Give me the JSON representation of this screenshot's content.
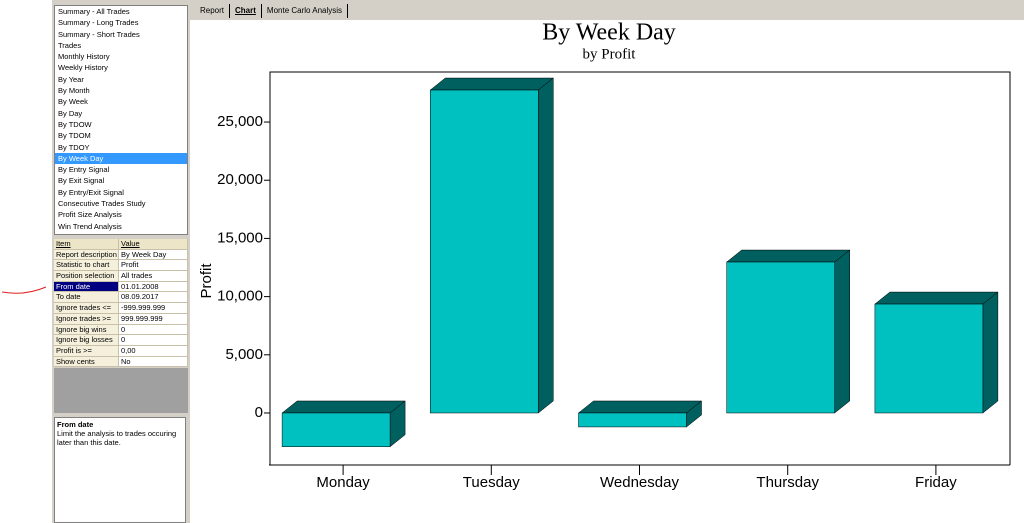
{
  "report_list": {
    "items": [
      "Summary - All Trades",
      "Summary - Long Trades",
      "Summary - Short Trades",
      "Trades",
      "Monthly History",
      "Weekly History",
      "By Year",
      "By Month",
      "By Week",
      "By Day",
      "By TDOW",
      "By TDOM",
      "By TDOY",
      "By Week Day",
      "By Entry Signal",
      "By Exit Signal",
      "By Entry/Exit Signal",
      "Consecutive Trades Study",
      "Profit Size Analysis",
      "Win Trend Analysis"
    ],
    "selected": "By Week Day"
  },
  "properties": {
    "header": [
      "Item",
      "Value"
    ],
    "selected": "From date",
    "rows": [
      [
        "Report description",
        "By Week Day"
      ],
      [
        "Statistic to chart",
        "Profit"
      ],
      [
        "Position selection",
        "All trades"
      ],
      [
        "From date",
        "01.01.2008"
      ],
      [
        "To date",
        "08.09.2017"
      ],
      [
        "Ignore trades <=",
        "-999.999.999"
      ],
      [
        "Ignore trades >=",
        "999.999.999"
      ],
      [
        "Ignore big wins",
        "0"
      ],
      [
        "Ignore big losses",
        "0"
      ],
      [
        "Profit is >=",
        "0,00"
      ],
      [
        "Show cents",
        "No"
      ]
    ]
  },
  "help": {
    "title": "From date",
    "text": "Limit the analysis to trades occuring later than this date."
  },
  "tabs": {
    "items": [
      "Report",
      "Chart",
      "Monte Carlo Analysis"
    ],
    "active": "Chart"
  },
  "chart_data": {
    "type": "bar3d",
    "title": "By Week Day",
    "subtitle": "by Profit",
    "y_label": "Profit",
    "categories": [
      "Monday",
      "Tuesday",
      "Wednesday",
      "Thursday",
      "Friday"
    ],
    "values": [
      -2900,
      27750,
      -1200,
      12970,
      9360
    ],
    "color": "#00c0c0",
    "shade_color": "#006060",
    "ylim": [
      -4470,
      29300
    ],
    "yticks": [
      0,
      {
        "value": 5000,
        "label": "5,000"
      },
      {
        "value": 10000,
        "label": "10,000"
      },
      {
        "value": 15000,
        "label": "15,000"
      },
      {
        "value": 20000,
        "label": "20,000"
      },
      {
        "value": 25000,
        "label": "25,000"
      }
    ]
  }
}
